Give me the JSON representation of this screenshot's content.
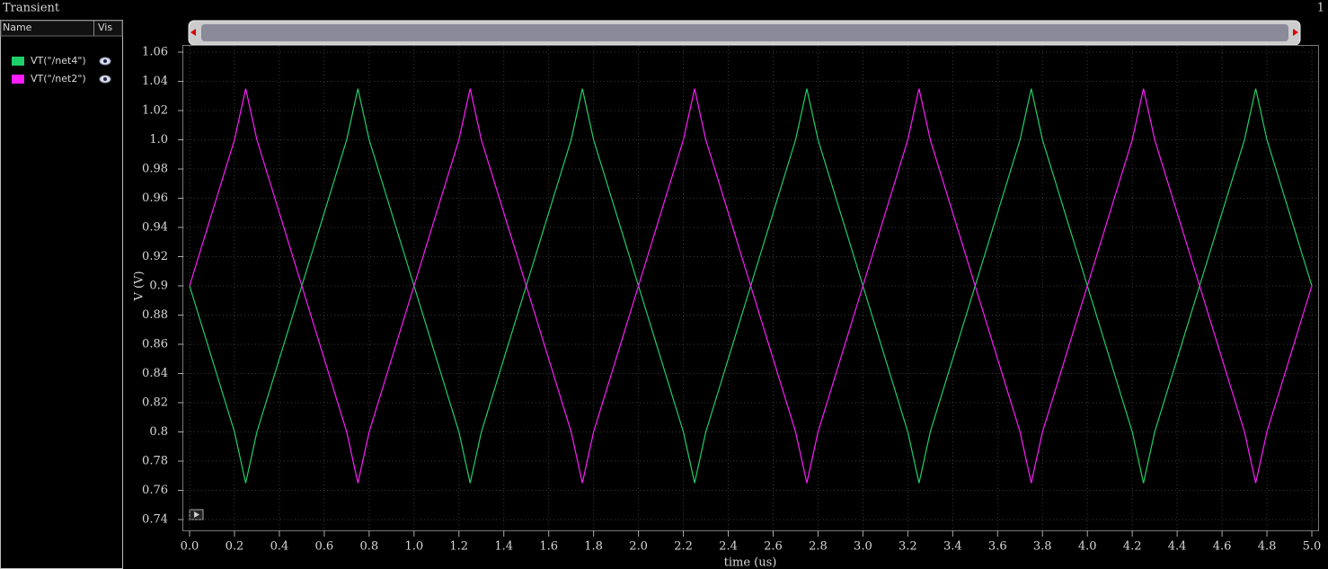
{
  "window": {
    "title": "Transient",
    "index": "1"
  },
  "panel": {
    "name_header": "Name",
    "vis_header": "Vis"
  },
  "chart_data": {
    "type": "line",
    "xlabel": "time (us)",
    "ylabel": "V (V)",
    "x": [
      0,
      0.05,
      0.1,
      0.15,
      0.2,
      0.25,
      0.3,
      0.35,
      0.4,
      0.45,
      0.5,
      0.55,
      0.6,
      0.65,
      0.7,
      0.75,
      0.8,
      0.85,
      0.9,
      0.95,
      1,
      1.05,
      1.1,
      1.15,
      1.2,
      1.25,
      1.3,
      1.35,
      1.4,
      1.45,
      1.5,
      1.55,
      1.6,
      1.65,
      1.7,
      1.75,
      1.8,
      1.85,
      1.9,
      1.95,
      2,
      2.05,
      2.1,
      2.15,
      2.2,
      2.25,
      2.3,
      2.35,
      2.4,
      2.45,
      2.5,
      2.55,
      2.6,
      2.65,
      2.7,
      2.75,
      2.8,
      2.85,
      2.9,
      2.95,
      3,
      3.05,
      3.1,
      3.15,
      3.2,
      3.25,
      3.3,
      3.35,
      3.4,
      3.45,
      3.5,
      3.55,
      3.6,
      3.65,
      3.7,
      3.75,
      3.8,
      3.85,
      3.9,
      3.95,
      4,
      4.05,
      4.1,
      4.15,
      4.2,
      4.25,
      4.3,
      4.35,
      4.4,
      4.45,
      4.5,
      4.55,
      4.6,
      4.65,
      4.7,
      4.75,
      4.8,
      4.85,
      4.9,
      4.95,
      5
    ],
    "series": [
      {
        "name": "VT(\"/net4\")",
        "color": "#1fd06a",
        "values": [
          0.9,
          0.875,
          0.85,
          0.825,
          0.8,
          0.765,
          0.8,
          0.825,
          0.85,
          0.875,
          0.9,
          0.925,
          0.95,
          0.975,
          1.0,
          1.035,
          1.0,
          0.975,
          0.95,
          0.925,
          0.9,
          0.875,
          0.85,
          0.825,
          0.8,
          0.765,
          0.8,
          0.825,
          0.85,
          0.875,
          0.9,
          0.925,
          0.95,
          0.975,
          1.0,
          1.035,
          1.0,
          0.975,
          0.95,
          0.925,
          0.9,
          0.875,
          0.85,
          0.825,
          0.8,
          0.765,
          0.8,
          0.825,
          0.85,
          0.875,
          0.9,
          0.925,
          0.95,
          0.975,
          1.0,
          1.035,
          1.0,
          0.975,
          0.95,
          0.925,
          0.9,
          0.875,
          0.85,
          0.825,
          0.8,
          0.765,
          0.8,
          0.825,
          0.85,
          0.875,
          0.9,
          0.925,
          0.95,
          0.975,
          1.0,
          1.035,
          1.0,
          0.975,
          0.95,
          0.925,
          0.9,
          0.875,
          0.85,
          0.825,
          0.8,
          0.765,
          0.8,
          0.825,
          0.85,
          0.875,
          0.9,
          0.925,
          0.95,
          0.975,
          1.0,
          1.035,
          1.0,
          0.975,
          0.95,
          0.925,
          0.9
        ]
      },
      {
        "name": "VT(\"/net2\")",
        "color": "#ff1cff",
        "values": [
          0.9,
          0.925,
          0.95,
          0.975,
          1.0,
          1.035,
          1.0,
          0.975,
          0.95,
          0.925,
          0.9,
          0.875,
          0.85,
          0.825,
          0.8,
          0.765,
          0.8,
          0.825,
          0.85,
          0.875,
          0.9,
          0.925,
          0.95,
          0.975,
          1.0,
          1.035,
          1.0,
          0.975,
          0.95,
          0.925,
          0.9,
          0.875,
          0.85,
          0.825,
          0.8,
          0.765,
          0.8,
          0.825,
          0.85,
          0.875,
          0.9,
          0.925,
          0.95,
          0.975,
          1.0,
          1.035,
          1.0,
          0.975,
          0.95,
          0.925,
          0.9,
          0.875,
          0.85,
          0.825,
          0.8,
          0.765,
          0.8,
          0.825,
          0.85,
          0.875,
          0.9,
          0.925,
          0.95,
          0.975,
          1.0,
          1.035,
          1.0,
          0.975,
          0.95,
          0.925,
          0.9,
          0.875,
          0.85,
          0.825,
          0.8,
          0.765,
          0.8,
          0.825,
          0.85,
          0.875,
          0.9,
          0.925,
          0.95,
          0.975,
          1.0,
          1.035,
          1.0,
          0.975,
          0.95,
          0.925,
          0.9,
          0.875,
          0.85,
          0.825,
          0.8,
          0.765,
          0.8,
          0.825,
          0.85,
          0.875,
          0.9
        ]
      }
    ],
    "xlim": [
      0,
      5
    ],
    "xticks": [
      {
        "value": 0,
        "label": "0.0"
      },
      0.2,
      0.4,
      0.6,
      0.8,
      {
        "value": 1,
        "label": "1.0"
      },
      1.2,
      1.4,
      1.6,
      1.8,
      {
        "value": 2,
        "label": "2.0"
      },
      2.2,
      2.4,
      2.6,
      2.8,
      {
        "value": 3,
        "label": "3.0"
      },
      3.2,
      3.4,
      3.6,
      3.8,
      {
        "value": 4,
        "label": "4.0"
      },
      4.2,
      4.4,
      4.6,
      4.8,
      {
        "value": 5,
        "label": "5.0"
      }
    ],
    "ylim": [
      0.74,
      1.06
    ],
    "yticks": [
      0.74,
      0.76,
      0.78,
      0.8,
      0.82,
      0.84,
      0.86,
      0.88,
      0.9,
      0.92,
      0.94,
      0.96,
      0.98,
      {
        "value": 1,
        "label": "1.0"
      },
      1.02,
      1.04,
      1.06
    ],
    "grid": true
  }
}
